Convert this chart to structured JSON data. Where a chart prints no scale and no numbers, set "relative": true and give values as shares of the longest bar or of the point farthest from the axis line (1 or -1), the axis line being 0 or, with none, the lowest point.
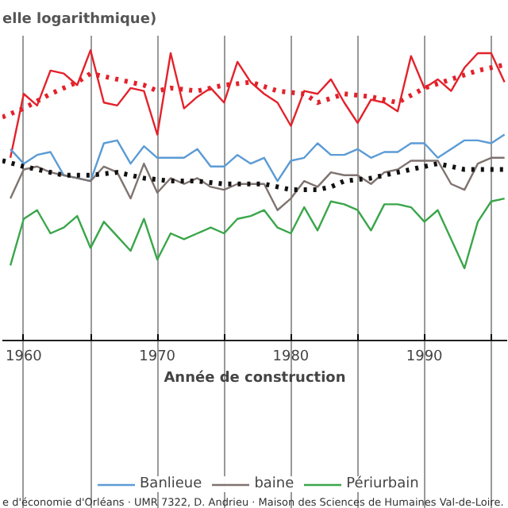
{
  "chart_data": {
    "type": "line",
    "relative": true,
    "title": "elle logarithmique)",
    "xlabel": "Année de construction",
    "xlim": [
      1958.4,
      1996.2
    ],
    "xticks": [
      1960,
      {
        "value": 1965,
        "label": null
      },
      1970,
      {
        "value": 1975,
        "label": null
      },
      1980,
      {
        "value": 1985,
        "label": null
      },
      1990,
      {
        "value": 1995,
        "label": null
      }
    ],
    "grid": "x",
    "legend": "bottom",
    "marker": "none",
    "annotations": [
      "e d'économie d'Orléans · UMR 7322, D. Andrieu · Maison des Sciences de Humaines Val-de-Loire."
    ],
    "series": [
      {
        "color": "#e3222b",
        "line_style": "solid",
        "x": [
          1959,
          1960,
          1961,
          1962,
          1963,
          1964,
          1965,
          1966,
          1967,
          1968,
          1969,
          1970,
          1971,
          1972,
          1973,
          1974,
          1975,
          1976,
          1977,
          1978,
          1979,
          1980,
          1981,
          1982,
          1983,
          1984,
          1985,
          1986,
          1987,
          1988,
          1989,
          1990,
          1991,
          1992,
          1993,
          1994,
          1995,
          1996
        ],
        "values": [
          0.63,
          0.85,
          0.81,
          0.93,
          0.92,
          0.88,
          1.0,
          0.82,
          0.81,
          0.87,
          0.86,
          0.71,
          0.99,
          0.8,
          0.84,
          0.87,
          0.82,
          0.96,
          0.89,
          0.85,
          0.82,
          0.74,
          0.86,
          0.85,
          0.9,
          0.82,
          0.75,
          0.83,
          0.82,
          0.79,
          0.98,
          0.87,
          0.9,
          0.86,
          0.94,
          0.99,
          0.99,
          0.89
        ]
      },
      {
        "color": "#e3222b",
        "line_style": "dotted",
        "x": [
          1958.4,
          1960,
          1962,
          1964,
          1965,
          1967,
          1969,
          1970,
          1971,
          1973,
          1975,
          1977,
          1979,
          1981,
          1982,
          1984,
          1986,
          1988,
          1990,
          1992,
          1994,
          1996
        ],
        "values": [
          0.77,
          0.8,
          0.85,
          0.89,
          0.92,
          0.9,
          0.88,
          0.86,
          0.87,
          0.86,
          0.88,
          0.89,
          0.86,
          0.85,
          0.82,
          0.85,
          0.84,
          0.82,
          0.87,
          0.9,
          0.93,
          0.95
        ]
      },
      {
        "name": "Banlieue",
        "color": "#5b9bd5",
        "line_style": "solid",
        "x": [
          1959,
          1960,
          1961,
          1962,
          1963,
          1964,
          1965,
          1966,
          1967,
          1968,
          1969,
          1970,
          1971,
          1972,
          1973,
          1974,
          1975,
          1976,
          1977,
          1978,
          1979,
          1980,
          1981,
          1982,
          1983,
          1984,
          1985,
          1986,
          1987,
          1988,
          1989,
          1990,
          1991,
          1992,
          1993,
          1994,
          1995,
          1996
        ],
        "values": [
          0.66,
          0.61,
          0.64,
          0.65,
          0.57,
          0.56,
          0.55,
          0.68,
          0.69,
          0.61,
          0.67,
          0.63,
          0.63,
          0.63,
          0.66,
          0.6,
          0.6,
          0.64,
          0.61,
          0.63,
          0.55,
          0.62,
          0.63,
          0.68,
          0.64,
          0.64,
          0.66,
          0.63,
          0.65,
          0.65,
          0.68,
          0.68,
          0.63,
          0.66,
          0.69,
          0.69,
          0.68,
          0.71
        ]
      },
      {
        "name": "baine",
        "color": "#7f7370",
        "line_style": "solid",
        "x": [
          1959,
          1960,
          1961,
          1962,
          1963,
          1964,
          1965,
          1966,
          1967,
          1968,
          1969,
          1970,
          1971,
          1972,
          1973,
          1974,
          1975,
          1976,
          1977,
          1978,
          1979,
          1980,
          1981,
          1982,
          1983,
          1984,
          1985,
          1986,
          1987,
          1988,
          1989,
          1990,
          1991,
          1992,
          1993,
          1994,
          1995,
          1996
        ],
        "values": [
          0.49,
          0.59,
          0.6,
          0.58,
          0.57,
          0.56,
          0.55,
          0.6,
          0.58,
          0.49,
          0.61,
          0.51,
          0.56,
          0.54,
          0.56,
          0.53,
          0.52,
          0.54,
          0.54,
          0.54,
          0.45,
          0.49,
          0.55,
          0.53,
          0.58,
          0.57,
          0.57,
          0.54,
          0.58,
          0.59,
          0.62,
          0.62,
          0.62,
          0.54,
          0.52,
          0.61,
          0.63,
          0.63
        ]
      },
      {
        "color": "#111111",
        "line_style": "dotted",
        "x": [
          1958.4,
          1960,
          1963,
          1965,
          1967,
          1969,
          1971,
          1973,
          1975,
          1978,
          1979,
          1980,
          1982,
          1983,
          1984,
          1986,
          1988,
          1990,
          1991,
          1993,
          1995,
          1996
        ],
        "values": [
          0.62,
          0.6,
          0.57,
          0.57,
          0.58,
          0.56,
          0.55,
          0.55,
          0.54,
          0.54,
          0.53,
          0.52,
          0.52,
          0.53,
          0.55,
          0.56,
          0.58,
          0.6,
          0.61,
          0.59,
          0.59,
          0.59
        ]
      },
      {
        "name": "Périurbain",
        "color": "#3aa64a",
        "line_style": "solid",
        "x": [
          1959,
          1960,
          1961,
          1962,
          1963,
          1964,
          1965,
          1966,
          1967,
          1968,
          1969,
          1970,
          1971,
          1972,
          1973,
          1974,
          1975,
          1976,
          1977,
          1978,
          1979,
          1980,
          1981,
          1982,
          1983,
          1984,
          1985,
          1986,
          1987,
          1988,
          1989,
          1990,
          1991,
          1992,
          1993,
          1994,
          1995,
          1996
        ],
        "values": [
          0.26,
          0.42,
          0.45,
          0.37,
          0.39,
          0.43,
          0.32,
          0.41,
          0.36,
          0.31,
          0.42,
          0.28,
          0.37,
          0.35,
          0.37,
          0.39,
          0.37,
          0.42,
          0.43,
          0.45,
          0.39,
          0.37,
          0.46,
          0.38,
          0.48,
          0.47,
          0.45,
          0.38,
          0.47,
          0.47,
          0.46,
          0.41,
          0.45,
          0.35,
          0.25,
          0.41,
          0.48,
          0.49
        ]
      }
    ]
  }
}
